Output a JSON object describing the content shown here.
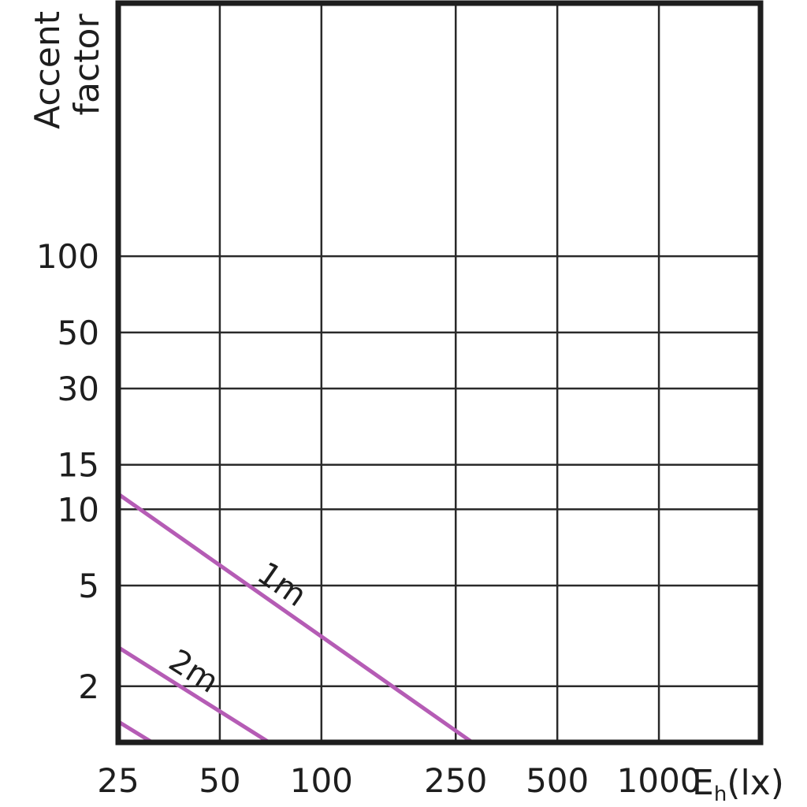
{
  "chart_data": {
    "type": "line",
    "ylabel_lines": [
      "Accent",
      "factor"
    ],
    "xlabel": "(lx)",
    "xlabel_symbol": "E",
    "xlabel_subscript": "h",
    "x_scale": "log",
    "y_scale": "log",
    "xlim": [
      25,
      2000
    ],
    "ylim": [
      1.2,
      1000
    ],
    "x_ticks": [
      25,
      50,
      100,
      250,
      500,
      1000
    ],
    "x_tick_labels": [
      "25",
      "50",
      "100",
      "250",
      "500",
      "1000"
    ],
    "y_ticks": [
      2,
      5,
      10,
      15,
      30,
      50,
      100
    ],
    "y_tick_labels": [
      "2",
      "5",
      "10",
      "15",
      "30",
      "50",
      "100"
    ],
    "grid": true,
    "line_color": "#b55cb5",
    "series": [
      {
        "name": "1m",
        "x": [
          25,
          280
        ],
        "y": [
          11.5,
          1.2
        ]
      },
      {
        "name": "2m",
        "x": [
          25,
          70
        ],
        "y": [
          2.85,
          1.2
        ]
      },
      {
        "name": "",
        "x": [
          25,
          31.5
        ],
        "y": [
          1.45,
          1.2
        ]
      }
    ]
  }
}
